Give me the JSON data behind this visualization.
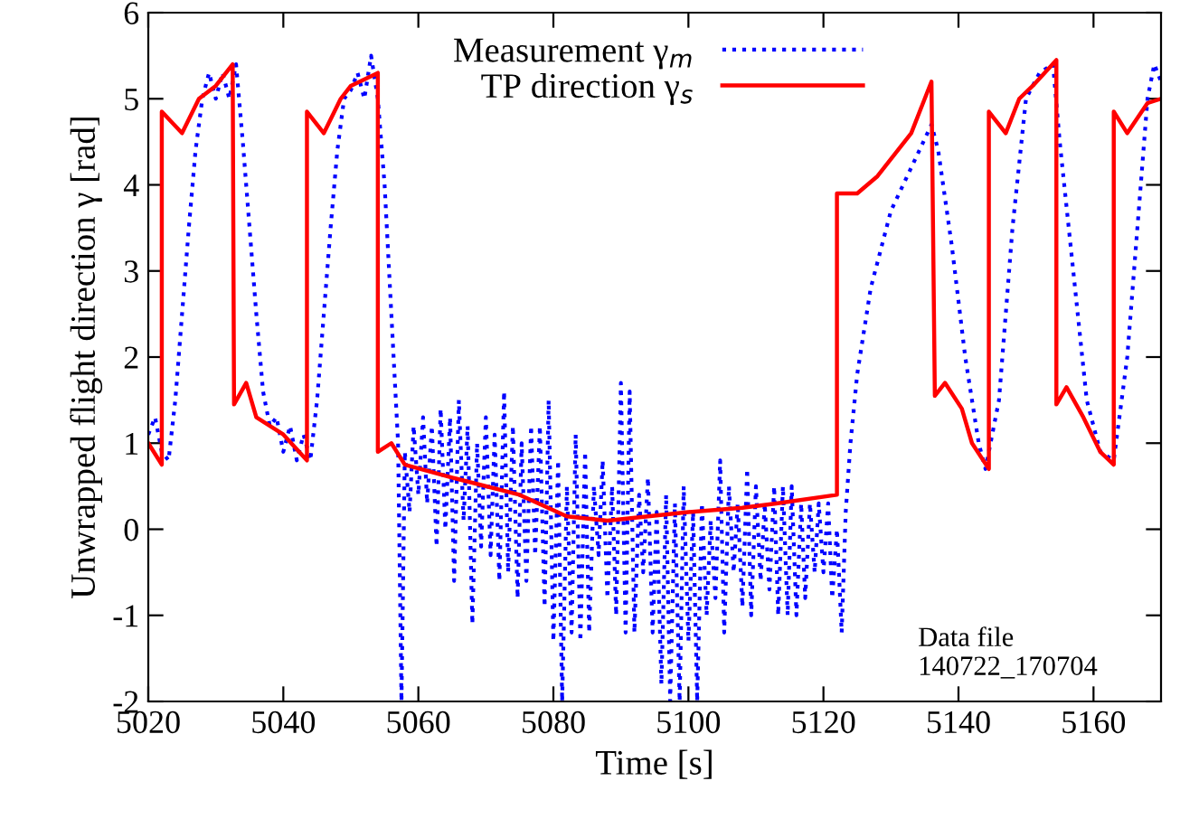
{
  "chart_data": {
    "type": "line",
    "xlabel": "Time [s]",
    "ylabel": "Unwrapped flight direction γ [rad]",
    "xlim": [
      5020,
      5170
    ],
    "ylim": [
      -2,
      6
    ],
    "xticks": [
      5020,
      5040,
      5060,
      5080,
      5100,
      5120,
      5140,
      5160
    ],
    "yticks": [
      -2,
      -1,
      0,
      1,
      2,
      3,
      4,
      5,
      6
    ],
    "grid": false,
    "legend": "top right",
    "annotations": [
      "Data file\n140722_170704"
    ],
    "series": [
      {
        "name": "Measurement γ$_{m}$",
        "color": "#0000ff",
        "line_style": "dotted",
        "x": [
          5020,
          5021,
          5022,
          5023,
          5024,
          5025,
          5026,
          5027,
          5028,
          5029,
          5030,
          5031,
          5032,
          5033,
          5034,
          5035,
          5036,
          5037,
          5038,
          5039,
          5040,
          5041,
          5042,
          5043,
          5044,
          5045,
          5046,
          5047,
          5048,
          5049,
          5050,
          5051,
          5052,
          5053,
          5054,
          5055,
          5056,
          5057,
          5057.5,
          5058,
          5058.7,
          5059.3,
          5060,
          5060.7,
          5061.3,
          5062,
          5062.7,
          5063.3,
          5064,
          5064.7,
          5065.3,
          5066,
          5066.7,
          5067.3,
          5068,
          5068.7,
          5069.3,
          5070,
          5070.7,
          5071.3,
          5072,
          5072.7,
          5073.3,
          5074,
          5074.7,
          5075.3,
          5076,
          5076.7,
          5077.3,
          5078,
          5078.7,
          5079.3,
          5080,
          5080.7,
          5081.3,
          5082,
          5082.7,
          5083.3,
          5084,
          5084.7,
          5085.3,
          5086,
          5086.7,
          5087.3,
          5088,
          5088.7,
          5089.3,
          5090,
          5090.7,
          5091.3,
          5092,
          5092.7,
          5093.3,
          5094,
          5094.7,
          5095.3,
          5096,
          5096.7,
          5097.3,
          5098,
          5098.7,
          5099.3,
          5100,
          5100.7,
          5101.3,
          5102,
          5102.7,
          5103.3,
          5104,
          5104.7,
          5105.3,
          5106,
          5106.7,
          5107.3,
          5108,
          5108.7,
          5109.3,
          5110,
          5110.7,
          5111.3,
          5112,
          5112.7,
          5113.3,
          5114,
          5114.7,
          5115.3,
          5116,
          5116.7,
          5117.3,
          5118,
          5118.7,
          5119.3,
          5120,
          5120.7,
          5121.3,
          5122,
          5122.7,
          5123.3,
          5124,
          5125,
          5127,
          5130,
          5133,
          5136,
          5137,
          5139,
          5141,
          5143,
          5144,
          5146,
          5148,
          5150,
          5152,
          5154,
          5155,
          5157,
          5159,
          5161,
          5163,
          5165,
          5167,
          5168,
          5169,
          5170
        ],
        "values": [
          1.1,
          1.3,
          0.9,
          0.8,
          1.5,
          2.5,
          3.5,
          4.4,
          5.0,
          5.3,
          5.0,
          5.3,
          5.0,
          5.4,
          4.5,
          3.5,
          2.5,
          1.6,
          1.2,
          1.3,
          0.9,
          1.2,
          0.8,
          1.1,
          0.8,
          1.5,
          2.5,
          3.5,
          4.4,
          5.0,
          5.1,
          5.3,
          5.0,
          5.5,
          5.0,
          4.0,
          2.5,
          1.0,
          -2.0,
          0.9,
          0.2,
          1.2,
          0.4,
          1.3,
          0.3,
          1.2,
          -0.2,
          1.4,
          0.0,
          1.3,
          -0.6,
          1.5,
          0.1,
          1.2,
          -1.1,
          1.0,
          -0.2,
          1.3,
          -0.3,
          1.1,
          -0.6,
          1.6,
          -0.5,
          1.2,
          -0.8,
          1.0,
          -0.6,
          1.2,
          -0.3,
          1.2,
          -0.9,
          1.5,
          -1.3,
          0.8,
          -2.0,
          0.5,
          -1.2,
          1.1,
          -1.3,
          0.9,
          -1.2,
          0.5,
          -0.3,
          0.8,
          -0.8,
          0.5,
          -1.0,
          1.7,
          -1.2,
          1.6,
          -1.2,
          0.4,
          -0.5,
          0.6,
          -1.2,
          0.2,
          -1.8,
          0.4,
          -2.0,
          0.3,
          -2.0,
          0.5,
          -1.3,
          0.2,
          -2.0,
          0.3,
          -1.0,
          0.1,
          -0.8,
          0.8,
          -1.2,
          0.5,
          -0.5,
          0.3,
          -0.9,
          0.7,
          -1.0,
          0.5,
          -0.6,
          0.3,
          -0.7,
          0.5,
          -1.0,
          0.5,
          -1.0,
          0.5,
          -1.0,
          0.3,
          -0.8,
          0.3,
          -0.5,
          0.3,
          -0.5,
          0.3,
          -0.8,
          0.0,
          -1.2,
          0.2,
          1.0,
          1.8,
          2.8,
          3.7,
          4.2,
          4.7,
          4.4,
          3.3,
          2.0,
          1.0,
          0.7,
          1.5,
          3.5,
          5.0,
          5.3,
          5.4,
          4.5,
          3.0,
          1.5,
          0.9,
          0.8,
          2.0,
          4.0,
          5.0,
          5.4,
          5.2
        ]
      },
      {
        "name": "TP direction γ$_{s}$",
        "color": "#ff0000",
        "line_style": "solid",
        "x": [
          5020,
          5022,
          5022,
          5025,
          5027.5,
          5030,
          5032.5,
          5032.7,
          5034.5,
          5036,
          5040,
          5043.5,
          5043.5,
          5046,
          5048.5,
          5050,
          5054,
          5054,
          5056,
          5058,
          5065,
          5075,
          5082,
          5088,
          5100,
          5108,
          5113,
          5122,
          5122,
          5125,
          5128,
          5133,
          5136,
          5136.5,
          5138,
          5140.5,
          5142,
          5144.5,
          5144.5,
          5147,
          5149,
          5151,
          5154.5,
          5154.5,
          5156,
          5158.5,
          5161,
          5163,
          5163,
          5165,
          5168,
          5170
        ],
        "values": [
          1.0,
          0.75,
          4.85,
          4.6,
          5.0,
          5.15,
          5.4,
          1.45,
          1.7,
          1.3,
          1.1,
          0.8,
          4.85,
          4.6,
          5.0,
          5.15,
          5.3,
          0.9,
          1.0,
          0.75,
          0.6,
          0.4,
          0.15,
          0.1,
          0.2,
          0.25,
          0.3,
          0.4,
          3.9,
          3.9,
          4.1,
          4.6,
          5.2,
          1.55,
          1.7,
          1.4,
          1.0,
          0.7,
          4.85,
          4.6,
          5.0,
          5.15,
          5.45,
          1.45,
          1.65,
          1.3,
          0.9,
          0.75,
          4.85,
          4.6,
          4.95,
          5.0
        ]
      }
    ]
  }
}
